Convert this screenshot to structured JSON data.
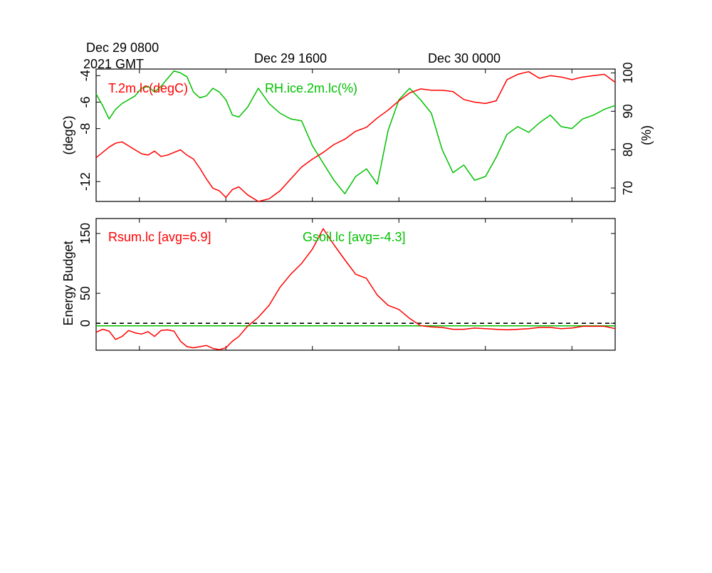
{
  "header": {
    "start_line1": "Dec 29 0800",
    "start_line2": "2021 GMT",
    "tick_label_2": "Dec 29 1600",
    "tick_label_3": "Dec 30 0000"
  },
  "colors": {
    "red": "#ff0000",
    "green": "#00c000",
    "frame": "#000000",
    "zero_line": "#000000"
  },
  "chart_data": [
    {
      "type": "line",
      "time_axis": {
        "tick_labels": [
          "Dec 29 0800 2021 GMT",
          "Dec 29 1600",
          "Dec 30 0000"
        ],
        "hours_span": [
          0,
          24
        ]
      },
      "y_left": {
        "label": "(degC)",
        "ticks": [
          -4,
          -6,
          -8,
          -12
        ],
        "ylim": [
          -13.5,
          -3.5
        ]
      },
      "y_right": {
        "label": "(%)",
        "ticks": [
          70,
          80,
          90,
          100
        ],
        "ylim": [
          66.5,
          101
        ]
      },
      "series": [
        {
          "name": "T.2m.lc(degC)",
          "axis": "left",
          "color": "#ff0000",
          "x": [
            0,
            0.3,
            0.6,
            0.9,
            1.2,
            1.5,
            1.8,
            2.1,
            2.4,
            2.7,
            3.0,
            3.3,
            3.6,
            3.9,
            4.2,
            4.5,
            4.8,
            5.1,
            5.4,
            5.7,
            6.0,
            6.3,
            6.6,
            7.0,
            7.5,
            8.0,
            8.5,
            9.0,
            9.5,
            10.0,
            10.5,
            11.0,
            11.5,
            12.0,
            12.5,
            13.0,
            13.5,
            14.0,
            14.5,
            15.0,
            15.5,
            16.0,
            16.5,
            17.0,
            17.5,
            18.0,
            18.5,
            19.0,
            19.5,
            20.0,
            20.5,
            21.0,
            21.5,
            22.0,
            22.5,
            23.0,
            23.5,
            24.0
          ],
          "values": [
            -10.2,
            -9.8,
            -9.4,
            -9.1,
            -9.0,
            -9.3,
            -9.6,
            -9.9,
            -10.0,
            -9.7,
            -10.1,
            -10.0,
            -9.8,
            -9.6,
            -10.0,
            -10.3,
            -11.0,
            -11.8,
            -12.5,
            -12.7,
            -13.2,
            -12.6,
            -12.4,
            -13.0,
            -13.5,
            -13.3,
            -12.7,
            -11.8,
            -10.9,
            -10.3,
            -9.8,
            -9.2,
            -8.8,
            -8.2,
            -7.9,
            -7.2,
            -6.6,
            -5.9,
            -5.3,
            -5.0,
            -5.1,
            -5.1,
            -5.2,
            -5.8,
            -6.0,
            -6.1,
            -5.9,
            -4.3,
            -3.9,
            -3.7,
            -4.2,
            -4.0,
            -4.1,
            -4.3,
            -4.1,
            -4.0,
            -3.9,
            -4.5
          ]
        },
        {
          "name": "RH.ice.2m.lc(%)",
          "axis": "right",
          "color": "#00c000",
          "x": [
            0,
            0.3,
            0.6,
            0.9,
            1.2,
            1.5,
            1.8,
            2.1,
            2.4,
            2.7,
            3.0,
            3.3,
            3.6,
            3.9,
            4.2,
            4.5,
            4.8,
            5.1,
            5.4,
            5.7,
            6.0,
            6.3,
            6.6,
            7.0,
            7.5,
            8.0,
            8.5,
            9.0,
            9.5,
            10.0,
            10.5,
            11.0,
            11.5,
            12.0,
            12.5,
            13.0,
            13.5,
            14.0,
            14.5,
            15.0,
            15.5,
            16.0,
            16.5,
            17.0,
            17.5,
            18.0,
            18.5,
            19.0,
            19.5,
            20.0,
            20.5,
            21.0,
            21.5,
            22.0,
            22.5,
            23.0,
            23.5,
            24.0
          ],
          "values": [
            94.5,
            91.5,
            88.0,
            90.5,
            92.0,
            93.0,
            94.0,
            96.0,
            96.5,
            95.0,
            96.5,
            98.5,
            100.5,
            100.0,
            99.0,
            95.0,
            93.5,
            94.0,
            96.0,
            95.0,
            93.0,
            89.0,
            88.5,
            91.0,
            96.0,
            92.0,
            89.5,
            88.0,
            87.5,
            81.0,
            76.5,
            72.0,
            68.5,
            73.0,
            75.0,
            71.0,
            85.0,
            93.0,
            96.0,
            93.0,
            89.5,
            80.0,
            74.0,
            76.0,
            72.0,
            73.0,
            78.0,
            84.0,
            86.0,
            84.5,
            87.0,
            89.0,
            86.0,
            85.5,
            88.0,
            89.0,
            90.5,
            91.5
          ]
        }
      ]
    },
    {
      "type": "line",
      "y_left": {
        "label": "Energy Budget",
        "ticks": [
          0,
          50,
          150
        ],
        "ylim": [
          -45,
          175
        ]
      },
      "reference_line": 0,
      "series": [
        {
          "name": "Rsum.lc [avg=6.9]",
          "color": "#ff0000",
          "x": [
            0,
            0.3,
            0.6,
            0.9,
            1.2,
            1.5,
            1.8,
            2.1,
            2.4,
            2.7,
            3.0,
            3.3,
            3.6,
            3.9,
            4.2,
            4.5,
            4.8,
            5.1,
            5.4,
            5.7,
            6.0,
            6.3,
            6.6,
            7.0,
            7.5,
            8.0,
            8.5,
            9.0,
            9.5,
            10.0,
            10.5,
            11.0,
            11.5,
            12.0,
            12.5,
            13.0,
            13.5,
            14.0,
            14.5,
            15.0,
            15.5,
            16.0,
            16.5,
            17.0,
            17.5,
            18.0,
            18.5,
            19.0,
            19.5,
            20.0,
            20.5,
            21.0,
            21.5,
            22.0,
            22.5,
            23.0,
            23.5,
            24.0
          ],
          "values": [
            -15,
            -10,
            -13,
            -27,
            -22,
            -12,
            -16,
            -18,
            -14,
            -22,
            -12,
            -11,
            -13,
            -30,
            -39,
            -41,
            -39,
            -37,
            -42,
            -44,
            -41,
            -30,
            -22,
            -5,
            10,
            30,
            60,
            82,
            100,
            124,
            158,
            131,
            106,
            82,
            75,
            47,
            30,
            23,
            8,
            -4,
            -6,
            -7,
            -10,
            -10,
            -8,
            -9,
            -10,
            -11,
            -10,
            -9,
            -7,
            -7,
            -9,
            -8,
            -5,
            -5,
            -5,
            -9
          ]
        },
        {
          "name": "Gsoil.lc [avg=-4.3]",
          "color": "#00c000",
          "x": [
            0,
            24
          ],
          "values": [
            -4.3,
            -4.3
          ]
        }
      ]
    }
  ]
}
